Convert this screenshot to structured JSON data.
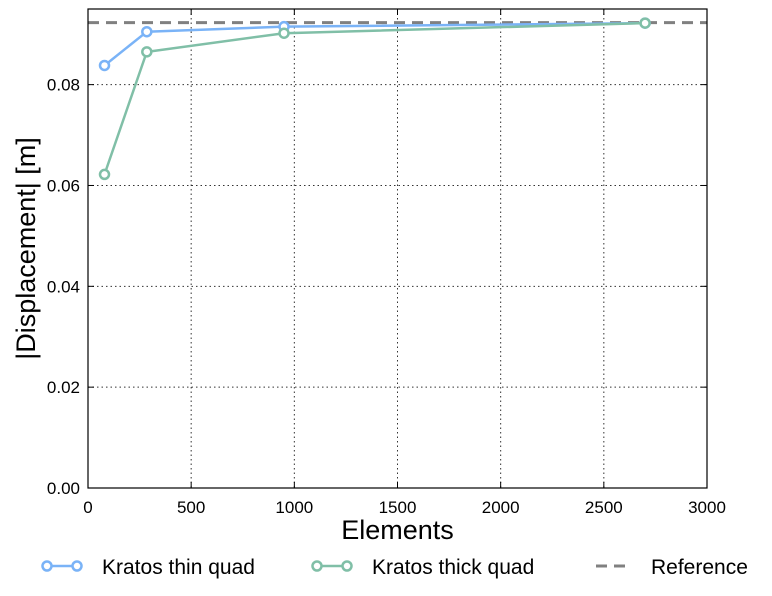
{
  "chart_data": {
    "type": "line",
    "title": "",
    "xlabel": "Elements",
    "ylabel": "|Displacement| [m]",
    "xlim": [
      0,
      3000
    ],
    "ylim": [
      0,
      0.095
    ],
    "x_ticks": [
      0,
      500,
      1000,
      1500,
      2000,
      2500,
      3000
    ],
    "x_tick_labels": [
      "0",
      "500",
      "1000",
      "1500",
      "2000",
      "2500",
      "3000"
    ],
    "y_ticks": [
      0,
      0.02,
      0.04,
      0.06,
      0.08
    ],
    "y_tick_labels": [
      "0.00",
      "0.02",
      "0.04",
      "0.06",
      "0.08"
    ],
    "grid": true,
    "legend_position": "bottom",
    "series": [
      {
        "name": "Kratos thin quad",
        "color": "#7ab3f7",
        "marker": "open-circle",
        "x": [
          80,
          285,
          950,
          2700
        ],
        "y": [
          0.0838,
          0.0905,
          0.0915,
          0.0922
        ]
      },
      {
        "name": "Kratos thick quad",
        "color": "#80bfa7",
        "marker": "open-circle",
        "x": [
          80,
          285,
          950,
          2700
        ],
        "y": [
          0.0622,
          0.0865,
          0.0902,
          0.0922
        ]
      }
    ],
    "reference": {
      "name": "Reference",
      "color": "#808080",
      "style": "dashed",
      "y": 0.0923
    }
  }
}
